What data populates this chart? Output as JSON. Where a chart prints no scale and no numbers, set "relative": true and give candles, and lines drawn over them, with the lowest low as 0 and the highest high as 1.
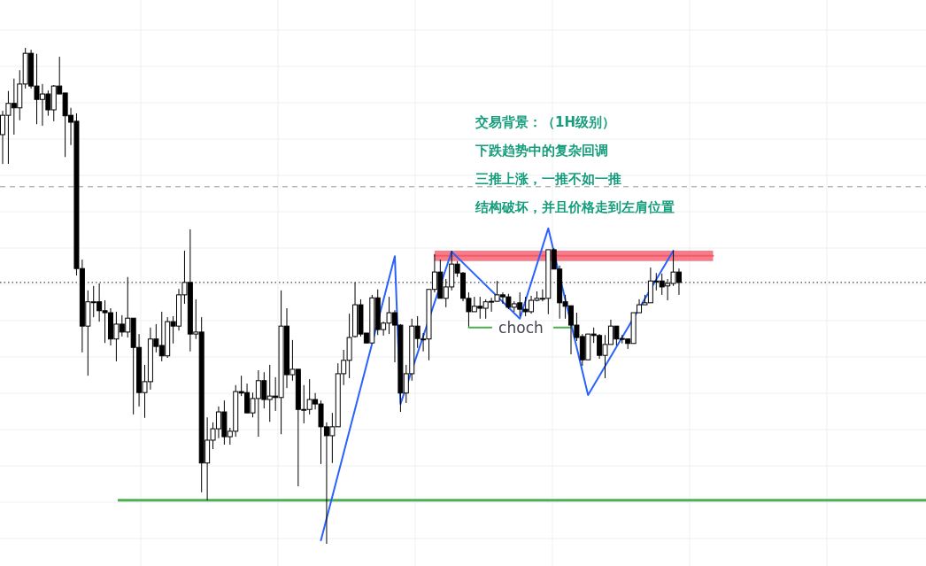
{
  "chart_data": {
    "type": "candlestick",
    "relative": true,
    "grid": true,
    "categories": [
      null,
      null,
      null,
      null,
      null,
      null,
      null,
      null,
      null,
      null,
      null,
      null,
      null,
      null,
      null,
      null,
      null,
      null,
      null,
      null,
      null,
      null,
      null,
      null,
      null,
      null,
      null,
      null,
      null,
      null,
      null,
      null,
      null,
      null,
      null,
      null,
      null,
      null,
      null,
      null,
      null,
      null,
      null,
      null,
      null,
      null,
      null,
      null,
      null,
      null,
      null,
      null,
      null,
      null,
      null,
      null,
      null,
      null,
      null,
      null,
      null,
      null,
      null,
      null,
      null,
      null,
      null,
      null,
      null,
      null,
      null,
      null,
      null,
      null,
      null,
      null,
      null,
      null,
      null,
      null,
      null,
      null,
      null,
      null,
      null,
      null,
      null,
      null,
      null,
      null,
      null,
      null,
      null,
      null,
      null,
      null,
      null,
      null,
      null,
      null,
      null,
      null,
      null,
      null,
      null,
      null,
      null,
      null,
      null,
      null,
      null,
      null,
      null,
      null,
      null,
      null,
      null,
      null,
      null,
      null,
      null,
      null,
      null,
      null,
      null,
      null,
      null,
      null,
      null,
      null,
      null,
      null,
      null,
      null,
      null,
      null,
      null,
      null,
      null,
      null,
      null,
      null,
      null,
      null,
      null,
      null,
      null,
      null,
      null,
      null,
      null,
      null,
      null,
      null,
      null,
      null,
      null,
      null,
      null,
      null,
      null,
      null,
      null
    ],
    "ohlc": [
      [
        0.825,
        0.873,
        0.766,
        0.864
      ],
      [
        0.864,
        0.913,
        0.766,
        0.888
      ],
      [
        0.888,
        0.938,
        0.825,
        0.879
      ],
      [
        0.879,
        0.955,
        0.854,
        0.927
      ],
      [
        0.927,
        1.0,
        0.918,
        0.989
      ],
      [
        0.989,
        0.996,
        0.918,
        0.923
      ],
      [
        0.923,
        0.988,
        0.846,
        0.896
      ],
      [
        0.896,
        0.927,
        0.843,
        0.907
      ],
      [
        0.907,
        0.914,
        0.863,
        0.875
      ],
      [
        0.875,
        0.925,
        0.852,
        0.923
      ],
      [
        0.923,
        0.982,
        0.907,
        0.907
      ],
      [
        0.909,
        0.909,
        0.78,
        0.863
      ],
      [
        0.864,
        0.879,
        0.804,
        0.85
      ],
      [
        0.852,
        0.868,
        0.541,
        0.555
      ],
      [
        0.555,
        0.573,
        0.386,
        0.439
      ],
      [
        0.439,
        0.511,
        0.339,
        0.488
      ],
      [
        0.488,
        0.52,
        0.457,
        0.488
      ],
      [
        0.488,
        0.525,
        0.448,
        0.47
      ],
      [
        0.47,
        0.491,
        0.405,
        0.466
      ],
      [
        0.466,
        0.475,
        0.4,
        0.413
      ],
      [
        0.413,
        0.468,
        0.368,
        0.443
      ],
      [
        0.443,
        0.461,
        0.418,
        0.427
      ],
      [
        0.427,
        0.538,
        0.416,
        0.455
      ],
      [
        0.455,
        0.455,
        0.261,
        0.396
      ],
      [
        0.396,
        0.423,
        0.277,
        0.305
      ],
      [
        0.305,
        0.361,
        0.254,
        0.327
      ],
      [
        0.327,
        0.436,
        0.311,
        0.413
      ],
      [
        0.413,
        0.443,
        0.386,
        0.398
      ],
      [
        0.4,
        0.468,
        0.368,
        0.379
      ],
      [
        0.379,
        0.457,
        0.375,
        0.448
      ],
      [
        0.448,
        0.459,
        0.404,
        0.439
      ],
      [
        0.439,
        0.514,
        0.43,
        0.502
      ],
      [
        0.502,
        0.591,
        0.484,
        0.527
      ],
      [
        0.527,
        0.634,
        0.388,
        0.423
      ],
      [
        0.423,
        0.493,
        0.413,
        0.427
      ],
      [
        0.427,
        0.457,
        0.104,
        0.163
      ],
      [
        0.163,
        0.255,
        0.088,
        0.209
      ],
      [
        0.209,
        0.245,
        0.191,
        0.232
      ],
      [
        0.232,
        0.277,
        0.213,
        0.266
      ],
      [
        0.266,
        0.289,
        0.2,
        0.216
      ],
      [
        0.216,
        0.234,
        0.2,
        0.227
      ],
      [
        0.227,
        0.32,
        0.216,
        0.307
      ],
      [
        0.307,
        0.339,
        0.298,
        0.304
      ],
      [
        0.305,
        0.323,
        0.264,
        0.264
      ],
      [
        0.264,
        0.305,
        0.255,
        0.293
      ],
      [
        0.293,
        0.35,
        0.216,
        0.329
      ],
      [
        0.329,
        0.346,
        0.273,
        0.291
      ],
      [
        0.291,
        0.361,
        0.246,
        0.298
      ],
      [
        0.298,
        0.336,
        0.268,
        0.295
      ],
      [
        0.295,
        0.511,
        0.221,
        0.439
      ],
      [
        0.439,
        0.475,
        0.314,
        0.341
      ],
      [
        0.341,
        0.411,
        0.329,
        0.352
      ],
      [
        0.352,
        0.352,
        0.116,
        0.271
      ],
      [
        0.271,
        0.32,
        0.243,
        0.271
      ],
      [
        0.271,
        0.332,
        0.261,
        0.291
      ],
      [
        0.291,
        0.304,
        0.271,
        0.282
      ],
      [
        0.282,
        0.289,
        0.161,
        0.236
      ],
      [
        0.236,
        0.245,
        0.0,
        0.218
      ],
      [
        0.218,
        0.264,
        0.163,
        0.236
      ],
      [
        0.236,
        0.364,
        0.236,
        0.343
      ],
      [
        0.343,
        0.391,
        0.32,
        0.37
      ],
      [
        0.37,
        0.464,
        0.334,
        0.416
      ],
      [
        0.418,
        0.527,
        0.416,
        0.482
      ],
      [
        0.482,
        0.493,
        0.418,
        0.423
      ],
      [
        0.425,
        0.425,
        0.404,
        0.405
      ],
      [
        0.405,
        0.502,
        0.405,
        0.496
      ],
      [
        0.496,
        0.513,
        0.421,
        0.432
      ],
      [
        0.432,
        0.448,
        0.42,
        0.445
      ],
      [
        0.445,
        0.498,
        0.423,
        0.466
      ],
      [
        0.466,
        0.471,
        0.366,
        0.441
      ],
      [
        0.441,
        0.443,
        0.266,
        0.304
      ],
      [
        0.304,
        0.361,
        0.284,
        0.343
      ],
      [
        0.343,
        0.454,
        0.329,
        0.439
      ],
      [
        0.439,
        0.459,
        0.395,
        0.414
      ],
      [
        0.413,
        0.425,
        0.388,
        0.413
      ],
      [
        0.413,
        0.513,
        0.37,
        0.513
      ],
      [
        0.513,
        0.584,
        0.507,
        0.548
      ],
      [
        0.548,
        0.573,
        0.495,
        0.495
      ],
      [
        0.495,
        0.534,
        0.477,
        0.518
      ],
      [
        0.518,
        0.591,
        0.511,
        0.564
      ],
      [
        0.564,
        0.57,
        0.538,
        0.546
      ],
      [
        0.546,
        0.548,
        0.489,
        0.495
      ],
      [
        0.495,
        0.507,
        0.438,
        0.468
      ],
      [
        0.468,
        0.498,
        0.468,
        0.479
      ],
      [
        0.479,
        0.498,
        0.454,
        0.475
      ],
      [
        0.475,
        0.493,
        0.454,
        0.488
      ],
      [
        0.488,
        0.496,
        0.468,
        0.489
      ],
      [
        0.489,
        0.53,
        0.488,
        0.502
      ],
      [
        0.502,
        0.507,
        0.484,
        0.498
      ],
      [
        0.498,
        0.504,
        0.473,
        0.477
      ],
      [
        0.477,
        0.489,
        0.468,
        0.484
      ],
      [
        0.486,
        0.507,
        0.459,
        0.473
      ],
      [
        0.473,
        0.498,
        0.459,
        0.468
      ],
      [
        0.468,
        0.5,
        0.464,
        0.491
      ],
      [
        0.491,
        0.509,
        0.489,
        0.495
      ],
      [
        0.495,
        0.513,
        0.489,
        0.495
      ],
      [
        0.495,
        0.593,
        0.463,
        0.593
      ],
      [
        0.593,
        0.596,
        0.554,
        0.554
      ],
      [
        0.554,
        0.561,
        0.454,
        0.486
      ],
      [
        0.488,
        0.502,
        0.454,
        0.479
      ],
      [
        0.48,
        0.48,
        0.382,
        0.441
      ],
      [
        0.441,
        0.466,
        0.409,
        0.416
      ],
      [
        0.418,
        0.423,
        0.359,
        0.371
      ],
      [
        0.371,
        0.423,
        0.371,
        0.423
      ],
      [
        0.423,
        0.436,
        0.405,
        0.42
      ],
      [
        0.42,
        0.423,
        0.373,
        0.38
      ],
      [
        0.38,
        0.421,
        0.334,
        0.402
      ],
      [
        0.402,
        0.452,
        0.402,
        0.439
      ],
      [
        0.439,
        0.439,
        0.4,
        0.413
      ],
      [
        0.414,
        0.421,
        0.404,
        0.413
      ],
      [
        0.413,
        0.414,
        0.393,
        0.404
      ],
      [
        0.404,
        0.466,
        0.404,
        0.466
      ],
      [
        0.466,
        0.493,
        0.466,
        0.482
      ],
      [
        0.482,
        0.502,
        0.482,
        0.486
      ],
      [
        0.486,
        0.557,
        0.486,
        0.53
      ],
      [
        0.53,
        0.546,
        0.511,
        0.529
      ],
      [
        0.53,
        0.545,
        0.502,
        0.518
      ],
      [
        0.52,
        0.534,
        0.491,
        0.525
      ],
      [
        0.525,
        0.591,
        0.52,
        0.548
      ],
      [
        0.548,
        0.555,
        0.502,
        0.527
      ],
      null,
      null,
      null,
      null,
      null,
      null,
      null,
      null,
      null,
      null,
      null,
      null,
      null,
      null,
      null,
      null,
      null,
      null,
      null,
      null,
      null,
      null,
      null,
      null,
      null,
      null,
      null,
      null,
      null,
      null,
      null,
      null,
      null,
      null,
      null,
      null,
      null,
      null,
      null,
      null,
      null,
      null,
      null
    ],
    "series": [
      {
        "type": "line",
        "color": "#f25b6a",
        "values": [
          null,
          null,
          null,
          null,
          null,
          null,
          null,
          null,
          null,
          null,
          null,
          null,
          null,
          null,
          null,
          null,
          null,
          null,
          null,
          null,
          null,
          null,
          null,
          null,
          null,
          null,
          null,
          null,
          null,
          null,
          null,
          null,
          null,
          null,
          null,
          null,
          null,
          null,
          null,
          null,
          null,
          null,
          null,
          null,
          null,
          null,
          null,
          null,
          null,
          null,
          null,
          null,
          null,
          null,
          null,
          null,
          null,
          null,
          null,
          null,
          null,
          null,
          null,
          null,
          null,
          null,
          null,
          null,
          null,
          null,
          null,
          null,
          null,
          null,
          null,
          null,
          0.581,
          0.581,
          0.581,
          0.581,
          0.581,
          0.581,
          0.581,
          0.581,
          0.581,
          0.581,
          0.581,
          0.581,
          0.581,
          0.581,
          0.581,
          0.581,
          0.581,
          0.581,
          0.581,
          0.581,
          0.581,
          0.581,
          0.581,
          0.581,
          0.581,
          0.581,
          0.581,
          0.581,
          0.581,
          0.581,
          0.581,
          0.581,
          0.581,
          0.581,
          0.581,
          0.581,
          0.581,
          0.581,
          0.581,
          0.581,
          0.581,
          0.581,
          0.581,
          0.581,
          0.581,
          0.581,
          0.581,
          0.581,
          0.581,
          0.581,
          null,
          null,
          null,
          null,
          null,
          null,
          null,
          null,
          null,
          null,
          null,
          null,
          null,
          null,
          null,
          null,
          null,
          null,
          null,
          null,
          null,
          null,
          null,
          null,
          null,
          null,
          null,
          null,
          null,
          null,
          null,
          null,
          null,
          null,
          null,
          null,
          null
        ],
        "upper": [
          null,
          null,
          null,
          null,
          null,
          null,
          null,
          null,
          null,
          null,
          null,
          null,
          null,
          null,
          null,
          null,
          null,
          null,
          null,
          null,
          null,
          null,
          null,
          null,
          null,
          null,
          null,
          null,
          null,
          null,
          null,
          null,
          null,
          null,
          null,
          null,
          null,
          null,
          null,
          null,
          null,
          null,
          null,
          null,
          null,
          null,
          null,
          null,
          null,
          null,
          null,
          null,
          null,
          null,
          null,
          null,
          null,
          null,
          null,
          null,
          null,
          null,
          null,
          null,
          null,
          null,
          null,
          null,
          null,
          null,
          null,
          null,
          null,
          null,
          null,
          null,
          0.591,
          0.591,
          0.591,
          0.591,
          0.591,
          0.591,
          0.591,
          0.591,
          0.591,
          0.591,
          0.591,
          0.591,
          0.591,
          0.591,
          0.591,
          0.591,
          0.591,
          0.591,
          0.591,
          0.591,
          0.591,
          0.591,
          0.591,
          0.591,
          0.591,
          0.591,
          0.591,
          0.591,
          0.591,
          0.591,
          0.591,
          0.591,
          0.591,
          0.591,
          0.591,
          0.591,
          0.591,
          0.591,
          0.591,
          0.591,
          0.591,
          0.591,
          0.591,
          0.591,
          0.591,
          0.591,
          0.591,
          0.591,
          0.591,
          0.591,
          null,
          null,
          null,
          null,
          null,
          null,
          null,
          null,
          null,
          null,
          null,
          null,
          null,
          null,
          null,
          null,
          null,
          null,
          null,
          null,
          null,
          null,
          null,
          null,
          null,
          null,
          null,
          null,
          null,
          null,
          null,
          null,
          null,
          null,
          null,
          null,
          null
        ],
        "lower": [
          null,
          null,
          null,
          null,
          null,
          null,
          null,
          null,
          null,
          null,
          null,
          null,
          null,
          null,
          null,
          null,
          null,
          null,
          null,
          null,
          null,
          null,
          null,
          null,
          null,
          null,
          null,
          null,
          null,
          null,
          null,
          null,
          null,
          null,
          null,
          null,
          null,
          null,
          null,
          null,
          null,
          null,
          null,
          null,
          null,
          null,
          null,
          null,
          null,
          null,
          null,
          null,
          null,
          null,
          null,
          null,
          null,
          null,
          null,
          null,
          null,
          null,
          null,
          null,
          null,
          null,
          null,
          null,
          null,
          null,
          null,
          null,
          null,
          null,
          null,
          null,
          0.57,
          0.57,
          0.57,
          0.57,
          0.57,
          0.57,
          0.57,
          0.57,
          0.57,
          0.57,
          0.57,
          0.57,
          0.57,
          0.57,
          0.57,
          0.57,
          0.57,
          0.57,
          0.57,
          0.57,
          0.57,
          0.57,
          0.57,
          0.57,
          0.57,
          0.57,
          0.57,
          0.57,
          0.57,
          0.57,
          0.57,
          0.57,
          0.57,
          0.57,
          0.57,
          0.57,
          0.57,
          0.57,
          0.57,
          0.57,
          0.57,
          0.57,
          0.57,
          0.57,
          0.57,
          0.57,
          0.57,
          0.57,
          0.57,
          0.57,
          null,
          null,
          null,
          null,
          null,
          null,
          null,
          null,
          null,
          null,
          null,
          null,
          null,
          null,
          null,
          null,
          null,
          null,
          null,
          null,
          null,
          null,
          null,
          null,
          null,
          null,
          null,
          null,
          null,
          null,
          null,
          null,
          null,
          null,
          null,
          null,
          null
        ]
      },
      {
        "type": "line",
        "color": "#2962ff",
        "values": [
          null,
          null,
          null,
          null,
          null,
          null,
          null,
          null,
          null,
          null,
          null,
          null,
          null,
          null,
          null,
          null,
          null,
          null,
          null,
          null,
          null,
          null,
          null,
          null,
          null,
          null,
          null,
          null,
          null,
          null,
          null,
          null,
          null,
          null,
          null,
          null,
          null,
          null,
          null,
          null,
          null,
          null,
          null,
          null,
          null,
          null,
          null,
          null,
          null,
          null,
          null,
          null,
          null,
          null,
          null,
          null,
          0.007,
          null,
          null,
          null,
          null,
          null,
          null,
          null,
          null,
          null,
          null,
          null,
          null,
          0.58,
          0.282,
          null,
          null,
          null,
          null,
          null,
          null,
          null,
          null,
          0.589,
          null,
          null,
          null,
          null,
          null,
          null,
          null,
          null,
          null,
          null,
          null,
          0.454,
          null,
          null,
          null,
          null,
          0.636,
          null,
          null,
          null,
          null,
          null,
          null,
          0.3,
          null,
          null,
          null,
          null,
          null,
          null,
          null,
          null,
          null,
          null,
          null,
          null,
          null,
          null,
          0.591,
          null,
          null,
          null,
          null,
          null,
          null,
          null,
          null,
          null,
          null,
          null,
          null,
          null,
          null,
          null,
          null,
          null,
          null,
          null,
          null,
          null,
          null,
          null,
          null,
          null,
          null,
          null,
          null,
          null,
          null,
          null,
          null,
          null,
          null,
          null,
          null,
          null,
          null,
          null,
          null,
          null,
          null,
          null,
          null
        ]
      },
      {
        "type": "line",
        "name": "choch",
        "color": "#4caf50",
        "values": [
          null,
          null,
          null,
          null,
          null,
          null,
          null,
          null,
          null,
          null,
          null,
          null,
          null,
          null,
          null,
          null,
          null,
          null,
          null,
          null,
          null,
          null,
          null,
          null,
          null,
          null,
          null,
          null,
          null,
          null,
          null,
          null,
          null,
          null,
          null,
          null,
          null,
          null,
          null,
          null,
          null,
          null,
          null,
          null,
          null,
          null,
          null,
          null,
          null,
          null,
          null,
          null,
          null,
          null,
          null,
          null,
          null,
          null,
          null,
          null,
          null,
          null,
          null,
          null,
          null,
          null,
          null,
          null,
          null,
          null,
          null,
          null,
          null,
          null,
          null,
          null,
          null,
          null,
          null,
          null,
          null,
          null,
          0.436,
          null,
          null,
          null,
          0.436,
          null,
          null,
          null,
          null,
          null,
          null,
          null,
          null,
          null,
          null,
          null,
          null,
          null,
          null,
          null,
          null,
          null,
          null,
          null,
          null,
          null,
          null,
          null,
          null,
          null,
          null,
          null,
          null,
          null,
          null,
          null,
          null,
          null,
          null,
          null,
          null,
          null,
          null,
          null,
          null,
          null,
          null,
          null,
          null,
          null,
          null,
          null,
          null,
          null,
          null,
          null,
          null,
          null,
          null,
          null,
          null,
          null,
          null,
          null,
          null,
          null,
          null,
          null,
          null,
          null,
          null,
          null,
          null,
          null,
          null,
          null,
          null,
          null,
          null,
          null,
          null
        ]
      },
      {
        "type": "line",
        "color": "#4caf50",
        "values": [
          null,
          null,
          null,
          null,
          null,
          null,
          null,
          null,
          null,
          null,
          null,
          null,
          null,
          null,
          null,
          null,
          null,
          null,
          null,
          null,
          null,
          null,
          null,
          null,
          null,
          null,
          null,
          null,
          null,
          null,
          null,
          null,
          null,
          null,
          null,
          null,
          null,
          null,
          null,
          null,
          null,
          null,
          null,
          null,
          null,
          null,
          null,
          null,
          null,
          null,
          null,
          null,
          null,
          null,
          null,
          null,
          null,
          null,
          null,
          null,
          null,
          null,
          null,
          null,
          null,
          null,
          null,
          null,
          null,
          null,
          null,
          null,
          null,
          null,
          null,
          null,
          null,
          null,
          null,
          null,
          null,
          null,
          null,
          null,
          null,
          null,
          null,
          null,
          null,
          null,
          null,
          null,
          null,
          null,
          null,
          null,
          null,
          0.436,
          null,
          null,
          0.436,
          null,
          null,
          null,
          null,
          null,
          null,
          null,
          null,
          null,
          null,
          null,
          null,
          null,
          null,
          null,
          null,
          null,
          null,
          null,
          null,
          null,
          null,
          null,
          null,
          null,
          null,
          null,
          null,
          null,
          null,
          null,
          null,
          null,
          null,
          null,
          null,
          null,
          null,
          null,
          null,
          null,
          null,
          null,
          null,
          null,
          null,
          null,
          null,
          null,
          null,
          null,
          null,
          null,
          null,
          null,
          null,
          null,
          null,
          null,
          null,
          null,
          null
        ]
      }
    ],
    "ref_lines": [
      {
        "axis": "y",
        "value": 0.088,
        "color": "#4caf50",
        "line_style": "solid"
      },
      {
        "axis": "y",
        "value": 0.527,
        "color": "#131722",
        "line_style": "dotted"
      },
      {
        "axis": "y",
        "value": 0.72,
        "color": "#9598a1",
        "line_style": "dashed"
      }
    ],
    "annotations": [
      "交易背景：（1H级别）",
      "下跌趋势中的复杂回调",
      "三推上涨，一推不如一推",
      "结构破坏，并且价格走到左肩位置"
    ]
  }
}
